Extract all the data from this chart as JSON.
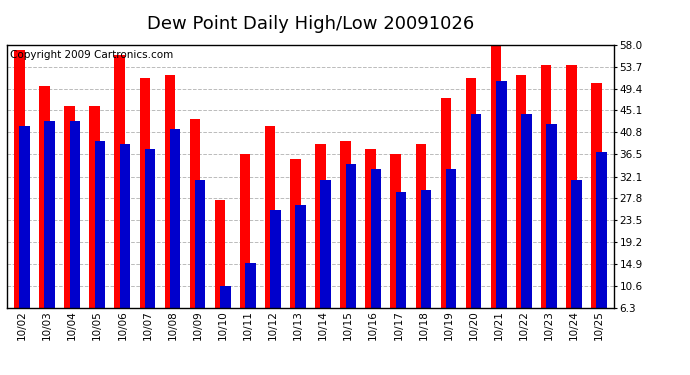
{
  "title": "Dew Point Daily High/Low 20091026",
  "copyright": "Copyright 2009 Cartronics.com",
  "dates": [
    "10/02",
    "10/03",
    "10/04",
    "10/05",
    "10/06",
    "10/07",
    "10/08",
    "10/09",
    "10/10",
    "10/11",
    "10/12",
    "10/13",
    "10/14",
    "10/15",
    "10/16",
    "10/17",
    "10/18",
    "10/19",
    "10/20",
    "10/21",
    "10/22",
    "10/23",
    "10/24",
    "10/25"
  ],
  "highs": [
    57.0,
    50.0,
    46.0,
    46.0,
    56.0,
    51.5,
    52.0,
    43.5,
    27.5,
    36.5,
    42.0,
    35.5,
    38.5,
    39.0,
    37.5,
    36.5,
    38.5,
    47.5,
    51.5,
    58.0,
    52.0,
    54.0,
    54.0,
    50.5
  ],
  "lows": [
    42.0,
    43.0,
    43.0,
    39.0,
    38.5,
    37.5,
    41.5,
    31.5,
    10.5,
    15.0,
    25.5,
    26.5,
    31.5,
    34.5,
    33.5,
    29.0,
    29.5,
    33.5,
    44.5,
    51.0,
    44.5,
    42.5,
    31.5,
    37.0
  ],
  "high_color": "#ff0000",
  "low_color": "#0000cc",
  "background_color": "#ffffff",
  "plot_bg_color": "#ffffff",
  "grid_color": "#bbbbbb",
  "yticks": [
    6.3,
    10.6,
    14.9,
    19.2,
    23.5,
    27.8,
    32.1,
    36.5,
    40.8,
    45.1,
    49.4,
    53.7,
    58.0
  ],
  "ymin": 6.3,
  "ymax": 58.0,
  "title_fontsize": 13,
  "tick_fontsize": 7.5,
  "copyright_fontsize": 7.5
}
